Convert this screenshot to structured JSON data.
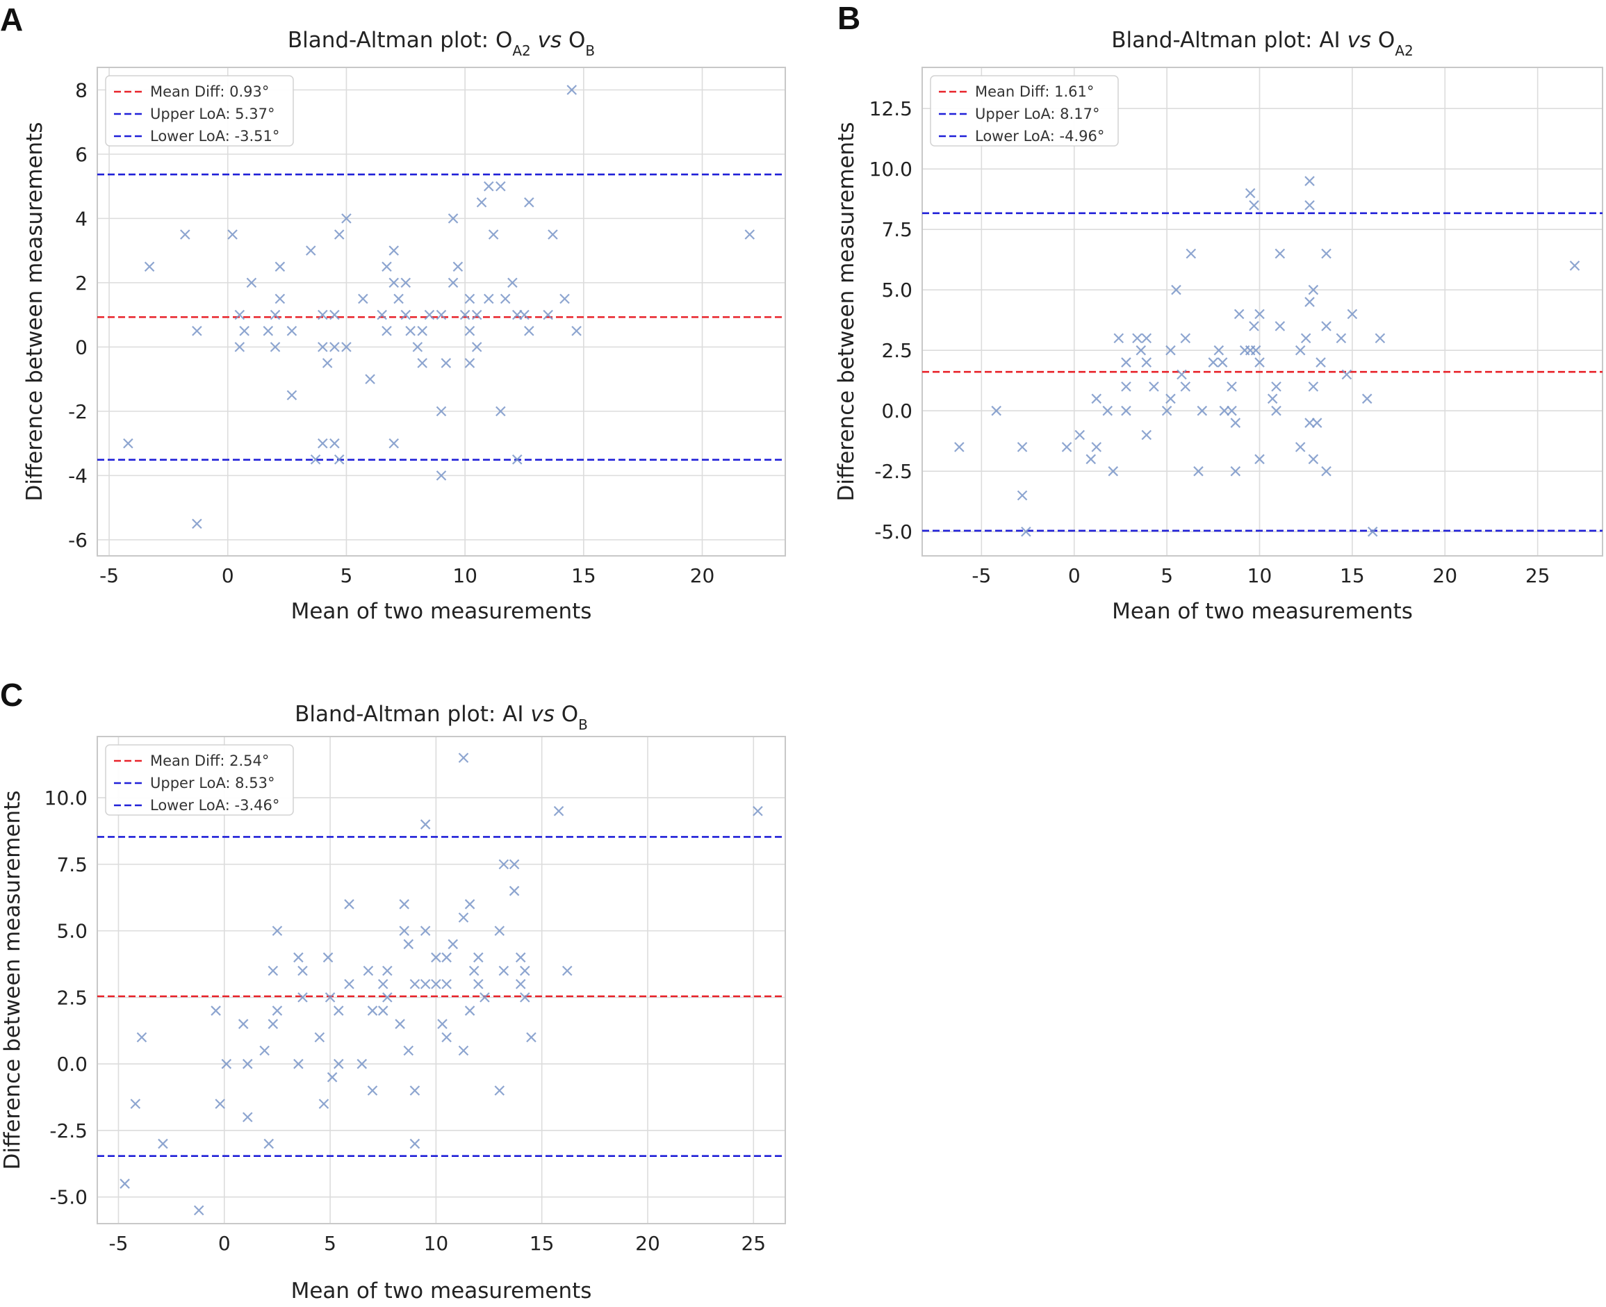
{
  "figure": {
    "panels": [
      {
        "letter": "A"
      },
      {
        "letter": "B"
      },
      {
        "letter": "C"
      }
    ]
  },
  "colors": {
    "mean_line": "#e8232a",
    "loa_line": "#2020d8",
    "points": "#7a96c8",
    "grid": "#dcdcdc",
    "frame": "#c8c8c8"
  },
  "chart_data": [
    {
      "type": "scatter",
      "title": "Bland-Altman plot: OA2 vs OB",
      "title_parts": [
        "Bland-Altman plot: O",
        "A2",
        " ",
        "vs",
        " O",
        "B"
      ],
      "xlabel": "Mean of two measurements",
      "ylabel": "Difference between measurements",
      "xlim": [
        -5.5,
        23.5
      ],
      "ylim": [
        -6.5,
        8.7
      ],
      "xticks": [
        -5,
        0,
        5,
        10,
        15,
        20
      ],
      "xtick_labels": [
        "-5",
        "0",
        "5",
        "10",
        "15",
        "20"
      ],
      "yticks": [
        -6,
        -4,
        -2,
        0,
        2,
        4,
        6,
        8
      ],
      "ytick_labels": [
        "-6",
        "-4",
        "-2",
        "0",
        "2",
        "4",
        "6",
        "8"
      ],
      "grid": true,
      "legend_position": "top-left",
      "lines": [
        {
          "name": "Mean Diff: 0.93°",
          "y": 0.93,
          "color": "#e8232a"
        },
        {
          "name": "Upper LoA: 5.37°",
          "y": 5.37,
          "color": "#2020d8"
        },
        {
          "name": "Lower LoA: -3.51°",
          "y": -3.51,
          "color": "#2020d8"
        }
      ],
      "points": [
        [
          -4.2,
          -3
        ],
        [
          -3.3,
          2.5
        ],
        [
          -1.8,
          3.5
        ],
        [
          -1.3,
          0.5
        ],
        [
          -1.3,
          -5.5
        ],
        [
          0.2,
          3.5
        ],
        [
          0.5,
          1
        ],
        [
          0.5,
          0
        ],
        [
          0.7,
          0.5
        ],
        [
          1,
          2
        ],
        [
          1.7,
          0.5
        ],
        [
          2,
          1
        ],
        [
          2,
          0
        ],
        [
          2.2,
          2.5
        ],
        [
          2.2,
          1.5
        ],
        [
          2.7,
          0.5
        ],
        [
          2.7,
          -1.5
        ],
        [
          3.5,
          3
        ],
        [
          3.7,
          -3.5
        ],
        [
          4,
          1
        ],
        [
          4,
          0
        ],
        [
          4,
          -3
        ],
        [
          4.2,
          -0.5
        ],
        [
          4.5,
          1
        ],
        [
          4.5,
          0
        ],
        [
          4.5,
          -3
        ],
        [
          4.7,
          3.5
        ],
        [
          4.7,
          -3.5
        ],
        [
          5,
          4
        ],
        [
          5,
          0
        ],
        [
          5.7,
          1.5
        ],
        [
          6,
          -1
        ],
        [
          6.5,
          1
        ],
        [
          6.7,
          2.5
        ],
        [
          6.7,
          0.5
        ],
        [
          7,
          3
        ],
        [
          7,
          2
        ],
        [
          7,
          -3
        ],
        [
          7.2,
          1.5
        ],
        [
          7.5,
          2
        ],
        [
          7.5,
          1
        ],
        [
          7.7,
          0.5
        ],
        [
          8,
          0
        ],
        [
          8.2,
          0.5
        ],
        [
          8.2,
          -0.5
        ],
        [
          8.5,
          1
        ],
        [
          9,
          1
        ],
        [
          9,
          -2
        ],
        [
          9,
          -4
        ],
        [
          9.2,
          -0.5
        ],
        [
          9.5,
          4
        ],
        [
          9.5,
          2
        ],
        [
          9.7,
          2.5
        ],
        [
          10,
          1
        ],
        [
          10.2,
          1.5
        ],
        [
          10.2,
          0.5
        ],
        [
          10.2,
          -0.5
        ],
        [
          10.5,
          1
        ],
        [
          10.5,
          0
        ],
        [
          10.7,
          4.5
        ],
        [
          11,
          5
        ],
        [
          11,
          1.5
        ],
        [
          11.2,
          3.5
        ],
        [
          11.5,
          5
        ],
        [
          11.5,
          -2
        ],
        [
          11.7,
          1.5
        ],
        [
          12,
          2
        ],
        [
          12.2,
          1
        ],
        [
          12.2,
          -3.5
        ],
        [
          12.5,
          1
        ],
        [
          12.7,
          4.5
        ],
        [
          12.7,
          0.5
        ],
        [
          13.5,
          1
        ],
        [
          13.7,
          3.5
        ],
        [
          14.2,
          1.5
        ],
        [
          14.5,
          8
        ],
        [
          14.7,
          0.5
        ],
        [
          22,
          3.5
        ]
      ]
    },
    {
      "type": "scatter",
      "title": "Bland-Altman plot: AI vs OA2",
      "title_parts": [
        "Bland-Altman plot: AI ",
        "",
        "",
        "vs",
        " O",
        "A2"
      ],
      "xlabel": "Mean of two measurements",
      "ylabel": "Difference between measurements",
      "xlim": [
        -8.2,
        28.5
      ],
      "ylim": [
        -6.0,
        14.2
      ],
      "xticks": [
        -5,
        0,
        5,
        10,
        15,
        20,
        25
      ],
      "xtick_labels": [
        "-5",
        "0",
        "5",
        "10",
        "15",
        "20",
        "25"
      ],
      "yticks": [
        -5,
        -2.5,
        0,
        2.5,
        5,
        7.5,
        10,
        12.5
      ],
      "ytick_labels": [
        "-5.0",
        "-2.5",
        "0.0",
        "2.5",
        "5.0",
        "7.5",
        "10.0",
        "12.5"
      ],
      "grid": true,
      "legend_position": "top-left",
      "lines": [
        {
          "name": "Mean Diff: 1.61°",
          "y": 1.61,
          "color": "#e8232a"
        },
        {
          "name": "Upper LoA: 8.17°",
          "y": 8.17,
          "color": "#2020d8"
        },
        {
          "name": "Lower LoA: -4.96°",
          "y": -4.96,
          "color": "#2020d8"
        }
      ],
      "points": [
        [
          -6.2,
          -1.5
        ],
        [
          -4.2,
          0
        ],
        [
          -2.8,
          -1.5
        ],
        [
          -2.8,
          -3.5
        ],
        [
          -2.6,
          -5
        ],
        [
          -0.4,
          -1.5
        ],
        [
          0.3,
          -1
        ],
        [
          0.9,
          -2
        ],
        [
          1.2,
          -1.5
        ],
        [
          1.2,
          0.5
        ],
        [
          1.8,
          0
        ],
        [
          2.1,
          -2.5
        ],
        [
          2.4,
          3
        ],
        [
          2.8,
          2
        ],
        [
          2.8,
          1
        ],
        [
          2.8,
          0
        ],
        [
          3.4,
          3
        ],
        [
          3.6,
          2.5
        ],
        [
          3.9,
          3
        ],
        [
          3.9,
          2
        ],
        [
          3.9,
          -1
        ],
        [
          4.3,
          1
        ],
        [
          5,
          0
        ],
        [
          5.2,
          2.5
        ],
        [
          5.2,
          0.5
        ],
        [
          5.5,
          5
        ],
        [
          5.8,
          1.5
        ],
        [
          6,
          3
        ],
        [
          6,
          1
        ],
        [
          6.3,
          6.5
        ],
        [
          6.7,
          -2.5
        ],
        [
          6.9,
          0
        ],
        [
          7.5,
          2
        ],
        [
          7.8,
          2.5
        ],
        [
          8,
          2
        ],
        [
          8.1,
          0
        ],
        [
          8.5,
          1
        ],
        [
          8.5,
          0
        ],
        [
          8.7,
          -0.5
        ],
        [
          8.7,
          -2.5
        ],
        [
          8.9,
          4
        ],
        [
          9.2,
          2.5
        ],
        [
          9.5,
          9
        ],
        [
          9.5,
          2.5
        ],
        [
          9.7,
          8.5
        ],
        [
          9.7,
          3.5
        ],
        [
          9.8,
          2.5
        ],
        [
          10,
          4
        ],
        [
          10,
          2
        ],
        [
          10,
          -2
        ],
        [
          10.7,
          0.5
        ],
        [
          10.9,
          1
        ],
        [
          10.9,
          0
        ],
        [
          11.1,
          6.5
        ],
        [
          11.1,
          3.5
        ],
        [
          12.2,
          2.5
        ],
        [
          12.2,
          -1.5
        ],
        [
          12.5,
          3
        ],
        [
          12.7,
          9.5
        ],
        [
          12.7,
          8.5
        ],
        [
          12.7,
          4.5
        ],
        [
          12.7,
          -0.5
        ],
        [
          12.9,
          5
        ],
        [
          12.9,
          1
        ],
        [
          12.9,
          -2
        ],
        [
          13.1,
          -0.5
        ],
        [
          13.3,
          2
        ],
        [
          13.6,
          6.5
        ],
        [
          13.6,
          3.5
        ],
        [
          13.6,
          -2.5
        ],
        [
          14.4,
          3
        ],
        [
          14.7,
          1.5
        ],
        [
          15,
          4
        ],
        [
          15.8,
          0.5
        ],
        [
          16.1,
          -5
        ],
        [
          16.5,
          3
        ],
        [
          27,
          6
        ]
      ]
    },
    {
      "type": "scatter",
      "title": "Bland-Altman plot: AI vs OB",
      "title_parts": [
        "Bland-Altman plot: AI ",
        "",
        "",
        "vs",
        " O",
        "B"
      ],
      "xlabel": "Mean of two measurements",
      "ylabel": "Difference between measurements",
      "xlim": [
        -6.0,
        26.5
      ],
      "ylim": [
        -6.0,
        12.3
      ],
      "xticks": [
        -5,
        0,
        5,
        10,
        15,
        20,
        25
      ],
      "xtick_labels": [
        "-5",
        "0",
        "5",
        "10",
        "15",
        "20",
        "25"
      ],
      "yticks": [
        -5,
        -2.5,
        0,
        2.5,
        5,
        7.5,
        10
      ],
      "ytick_labels": [
        "-5.0",
        "-2.5",
        "0.0",
        "2.5",
        "5.0",
        "7.5",
        "10.0"
      ],
      "grid": true,
      "legend_position": "top-left",
      "lines": [
        {
          "name": "Mean Diff: 2.54°",
          "y": 2.54,
          "color": "#e8232a"
        },
        {
          "name": "Upper LoA: 8.53°",
          "y": 8.53,
          "color": "#2020d8"
        },
        {
          "name": "Lower LoA: -3.46°",
          "y": -3.46,
          "color": "#2020d8"
        }
      ],
      "points": [
        [
          -4.7,
          -4.5
        ],
        [
          -4.2,
          -1.5
        ],
        [
          -3.9,
          1
        ],
        [
          -2.9,
          -3
        ],
        [
          -1.2,
          -5.5
        ],
        [
          -0.4,
          2
        ],
        [
          -0.2,
          -1.5
        ],
        [
          0.1,
          0
        ],
        [
          0.9,
          1.5
        ],
        [
          1.1,
          0
        ],
        [
          1.1,
          -2
        ],
        [
          1.9,
          0.5
        ],
        [
          2.1,
          -3
        ],
        [
          2.3,
          3.5
        ],
        [
          2.3,
          1.5
        ],
        [
          2.5,
          5
        ],
        [
          2.5,
          2
        ],
        [
          3.5,
          4
        ],
        [
          3.5,
          0
        ],
        [
          3.7,
          3.5
        ],
        [
          3.7,
          2.5
        ],
        [
          4.5,
          1
        ],
        [
          4.7,
          -1.5
        ],
        [
          4.9,
          4
        ],
        [
          5,
          2.5
        ],
        [
          5.1,
          -0.5
        ],
        [
          5.4,
          2
        ],
        [
          5.4,
          0
        ],
        [
          5.9,
          6
        ],
        [
          5.9,
          3
        ],
        [
          6.5,
          0
        ],
        [
          6.8,
          3.5
        ],
        [
          7,
          2
        ],
        [
          7,
          -1
        ],
        [
          7.5,
          3
        ],
        [
          7.5,
          2
        ],
        [
          7.7,
          3.5
        ],
        [
          7.7,
          2.5
        ],
        [
          8.3,
          1.5
        ],
        [
          8.5,
          6
        ],
        [
          8.5,
          5
        ],
        [
          8.7,
          4.5
        ],
        [
          8.7,
          0.5
        ],
        [
          9,
          3
        ],
        [
          9,
          -1
        ],
        [
          9,
          -3
        ],
        [
          9.5,
          9
        ],
        [
          9.5,
          5
        ],
        [
          9.5,
          3
        ],
        [
          10,
          4
        ],
        [
          10,
          3
        ],
        [
          10.3,
          1.5
        ],
        [
          10.5,
          4
        ],
        [
          10.5,
          3
        ],
        [
          10.5,
          1
        ],
        [
          10.8,
          4.5
        ],
        [
          11.3,
          11.5
        ],
        [
          11.3,
          5.5
        ],
        [
          11.3,
          0.5
        ],
        [
          11.6,
          6
        ],
        [
          11.6,
          2
        ],
        [
          11.8,
          3.5
        ],
        [
          12,
          4
        ],
        [
          12,
          3
        ],
        [
          12.3,
          2.5
        ],
        [
          13,
          5
        ],
        [
          13,
          -1
        ],
        [
          13.2,
          7.5
        ],
        [
          13.2,
          3.5
        ],
        [
          13.7,
          7.5
        ],
        [
          13.7,
          6.5
        ],
        [
          14,
          4
        ],
        [
          14,
          3
        ],
        [
          14.2,
          3.5
        ],
        [
          14.2,
          2.5
        ],
        [
          14.5,
          1
        ],
        [
          15.8,
          9.5
        ],
        [
          16.2,
          3.5
        ],
        [
          25.2,
          9.5
        ]
      ]
    }
  ]
}
